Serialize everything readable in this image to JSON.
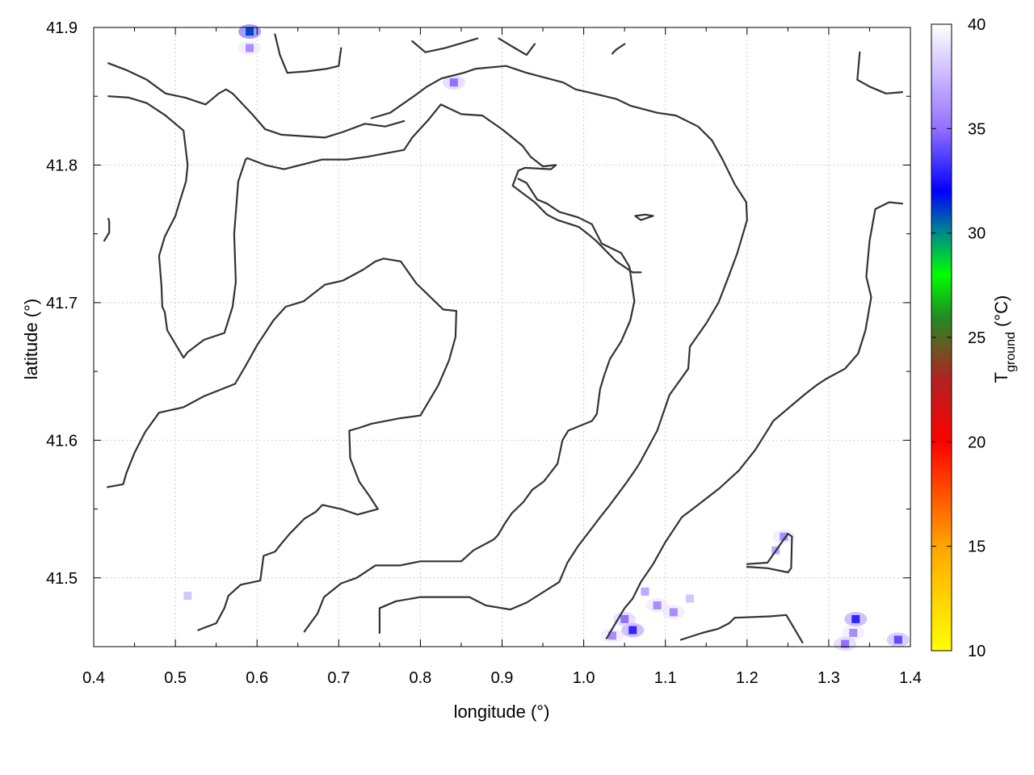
{
  "chart_data": {
    "type": "heatmap",
    "xlabel": "longitude (°)",
    "ylabel": "latitude (°)",
    "xlim": [
      0.4,
      1.4
    ],
    "ylim": [
      41.45,
      41.9
    ],
    "x_ticks": [
      "0.4",
      "0.5",
      "0.6",
      "0.7",
      "0.8",
      "0.9",
      "1.0",
      "1.1",
      "1.2",
      "1.3",
      "1.4"
    ],
    "y_ticks": [
      "41.5",
      "41.6",
      "41.7",
      "41.8",
      "41.9"
    ],
    "y_tick_values": [
      41.5,
      41.6,
      41.7,
      41.8,
      41.9
    ],
    "x_tick_values": [
      0.4,
      0.5,
      0.6,
      0.7,
      0.8,
      0.9,
      1.0,
      1.1,
      1.2,
      1.3,
      1.4
    ],
    "grid": true,
    "colorbar": {
      "label_main": "T",
      "label_sub": "ground",
      "label_unit": " (°C)",
      "range": [
        10,
        40
      ],
      "ticks": [
        "10",
        "15",
        "20",
        "25",
        "30",
        "35",
        "40"
      ],
      "tick_values": [
        10,
        15,
        20,
        25,
        30,
        35,
        40
      ],
      "stops": [
        {
          "value": 10,
          "color": "#ffff00"
        },
        {
          "value": 15,
          "color": "#ffa500"
        },
        {
          "value": 20,
          "color": "#ff0000"
        },
        {
          "value": 23,
          "color": "#b22222"
        },
        {
          "value": 26,
          "color": "#228b22"
        },
        {
          "value": 28,
          "color": "#00ff00"
        },
        {
          "value": 30,
          "color": "#008b8b"
        },
        {
          "value": 32,
          "color": "#0000ff"
        },
        {
          "value": 35,
          "color": "#9370ff"
        },
        {
          "value": 40,
          "color": "#ffffff"
        }
      ]
    },
    "hot_spots": [
      {
        "lon": 0.591,
        "lat": 41.897,
        "t": 31
      },
      {
        "lon": 0.591,
        "lat": 41.885,
        "t": 36
      },
      {
        "lon": 0.841,
        "lat": 41.86,
        "t": 35
      },
      {
        "lon": 0.515,
        "lat": 41.487,
        "t": 38
      },
      {
        "lon": 1.06,
        "lat": 41.462,
        "t": 33
      },
      {
        "lon": 1.05,
        "lat": 41.47,
        "t": 35
      },
      {
        "lon": 1.09,
        "lat": 41.48,
        "t": 36
      },
      {
        "lon": 1.11,
        "lat": 41.475,
        "t": 36
      },
      {
        "lon": 1.075,
        "lat": 41.49,
        "t": 37
      },
      {
        "lon": 1.13,
        "lat": 41.485,
        "t": 38
      },
      {
        "lon": 1.035,
        "lat": 41.458,
        "t": 36
      },
      {
        "lon": 1.245,
        "lat": 41.53,
        "t": 36
      },
      {
        "lon": 1.235,
        "lat": 41.52,
        "t": 37
      },
      {
        "lon": 1.333,
        "lat": 41.47,
        "t": 33
      },
      {
        "lon": 1.33,
        "lat": 41.46,
        "t": 36
      },
      {
        "lon": 1.385,
        "lat": 41.455,
        "t": 34
      },
      {
        "lon": 1.32,
        "lat": 41.452,
        "t": 35
      }
    ],
    "contours": [
      [
        [
          0.418,
          41.874
        ],
        [
          0.44,
          41.869
        ],
        [
          0.465,
          41.862
        ],
        [
          0.488,
          41.852
        ],
        [
          0.512,
          41.849
        ],
        [
          0.537,
          41.844
        ],
        [
          0.553,
          41.852
        ],
        [
          0.562,
          41.855
        ],
        [
          0.57,
          41.852
        ],
        [
          0.594,
          41.837
        ],
        [
          0.61,
          41.826
        ],
        [
          0.63,
          41.822
        ],
        [
          0.683,
          41.82
        ],
        [
          0.705,
          41.824
        ],
        [
          0.732,
          41.83
        ],
        [
          0.757,
          41.828
        ],
        [
          0.78,
          41.832
        ]
      ],
      [
        [
          0.418,
          41.85
        ],
        [
          0.443,
          41.849
        ],
        [
          0.465,
          41.845
        ],
        [
          0.488,
          41.836
        ],
        [
          0.51,
          41.825
        ],
        [
          0.515,
          41.8
        ],
        [
          0.513,
          41.788
        ],
        [
          0.505,
          41.773
        ],
        [
          0.5,
          41.763
        ],
        [
          0.487,
          41.748
        ],
        [
          0.48,
          41.734
        ],
        [
          0.483,
          41.712
        ],
        [
          0.484,
          41.697
        ],
        [
          0.487,
          41.693
        ],
        [
          0.49,
          41.68
        ],
        [
          0.51,
          41.66
        ],
        [
          0.515,
          41.664
        ],
        [
          0.535,
          41.673
        ],
        [
          0.56,
          41.678
        ],
        [
          0.57,
          41.697
        ],
        [
          0.574,
          41.715
        ],
        [
          0.572,
          41.75
        ],
        [
          0.577,
          41.788
        ],
        [
          0.586,
          41.804
        ],
        [
          0.588,
          41.805
        ],
        [
          0.61,
          41.8
        ],
        [
          0.633,
          41.797
        ],
        [
          0.68,
          41.804
        ],
        [
          0.71,
          41.804
        ],
        [
          0.735,
          41.806
        ],
        [
          0.78,
          41.811
        ],
        [
          0.79,
          41.82
        ],
        [
          0.81,
          41.833
        ],
        [
          0.825,
          41.844
        ],
        [
          0.85,
          41.837
        ],
        [
          0.876,
          41.836
        ],
        [
          0.9,
          41.826
        ],
        [
          0.925,
          41.814
        ],
        [
          0.935,
          41.806
        ],
        [
          0.95,
          41.799
        ],
        [
          0.966,
          41.8
        ],
        [
          0.96,
          41.797
        ],
        [
          0.928,
          41.798
        ],
        [
          0.92,
          41.796
        ],
        [
          0.913,
          41.785
        ],
        [
          0.94,
          41.773
        ],
        [
          0.955,
          41.764
        ],
        [
          0.968,
          41.76
        ],
        [
          0.994,
          41.755
        ],
        [
          1.005,
          41.75
        ],
        [
          1.015,
          41.745
        ],
        [
          1.04,
          41.73
        ],
        [
          1.06,
          41.722
        ],
        [
          1.07,
          41.722
        ]
      ],
      [
        [
          0.417,
          41.566
        ],
        [
          0.436,
          41.568
        ],
        [
          0.44,
          41.576
        ],
        [
          0.45,
          41.591
        ],
        [
          0.463,
          41.606
        ],
        [
          0.48,
          41.62
        ],
        [
          0.51,
          41.624
        ],
        [
          0.535,
          41.632
        ],
        [
          0.573,
          41.641
        ],
        [
          0.585,
          41.653
        ],
        [
          0.6,
          41.669
        ],
        [
          0.62,
          41.687
        ],
        [
          0.635,
          41.697
        ],
        [
          0.657,
          41.701
        ],
        [
          0.683,
          41.713
        ],
        [
          0.705,
          41.716
        ],
        [
          0.73,
          41.724
        ],
        [
          0.745,
          41.73
        ],
        [
          0.755,
          41.732
        ],
        [
          0.776,
          41.73
        ],
        [
          0.795,
          41.714
        ],
        [
          0.828,
          41.695
        ],
        [
          0.844,
          41.694
        ],
        [
          0.843,
          41.675
        ],
        [
          0.835,
          41.658
        ],
        [
          0.822,
          41.64
        ],
        [
          0.8,
          41.618
        ],
        [
          0.775,
          41.616
        ],
        [
          0.74,
          41.612
        ],
        [
          0.725,
          41.609
        ],
        [
          0.713,
          41.607
        ],
        [
          0.714,
          41.587
        ],
        [
          0.725,
          41.57
        ],
        [
          0.737,
          41.56
        ],
        [
          0.748,
          41.55
        ],
        [
          0.723,
          41.546
        ],
        [
          0.703,
          41.55
        ],
        [
          0.68,
          41.553
        ],
        [
          0.672,
          41.548
        ],
        [
          0.658,
          41.543
        ],
        [
          0.64,
          41.532
        ],
        [
          0.63,
          41.525
        ],
        [
          0.622,
          41.519
        ],
        [
          0.608,
          41.516
        ],
        [
          0.604,
          41.498
        ],
        [
          0.58,
          41.495
        ],
        [
          0.565,
          41.487
        ],
        [
          0.56,
          41.478
        ],
        [
          0.55,
          41.467
        ],
        [
          0.528,
          41.462
        ]
      ],
      [
        [
          0.658,
          41.461
        ],
        [
          0.674,
          41.474
        ],
        [
          0.682,
          41.486
        ],
        [
          0.703,
          41.496
        ],
        [
          0.722,
          41.5
        ],
        [
          0.745,
          41.509
        ],
        [
          0.775,
          41.509
        ],
        [
          0.8,
          41.512
        ],
        [
          0.85,
          41.512
        ],
        [
          0.865,
          41.52
        ],
        [
          0.89,
          41.528
        ],
        [
          0.895,
          41.531
        ],
        [
          0.904,
          41.54
        ],
        [
          0.912,
          41.547
        ],
        [
          0.926,
          41.555
        ],
        [
          0.937,
          41.564
        ],
        [
          0.951,
          41.57
        ],
        [
          0.968,
          41.583
        ],
        [
          0.974,
          41.6
        ],
        [
          0.981,
          41.607
        ],
        [
          1.01,
          41.614
        ],
        [
          1.016,
          41.619
        ],
        [
          1.02,
          41.637
        ],
        [
          1.025,
          41.647
        ],
        [
          1.032,
          41.659
        ],
        [
          1.046,
          41.672
        ],
        [
          1.057,
          41.687
        ],
        [
          1.062,
          41.701
        ],
        [
          1.056,
          41.726
        ],
        [
          1.046,
          41.736
        ],
        [
          1.022,
          41.743
        ],
        [
          1.01,
          41.757
        ],
        [
          0.993,
          41.762
        ],
        [
          0.97,
          41.766
        ],
        [
          0.955,
          41.772
        ],
        [
          0.943,
          41.775
        ],
        [
          0.93,
          41.787
        ],
        [
          0.92,
          41.79
        ]
      ],
      [
        [
          0.75,
          41.46
        ],
        [
          0.75,
          41.478
        ],
        [
          0.77,
          41.483
        ],
        [
          0.8,
          41.486
        ],
        [
          0.86,
          41.486
        ],
        [
          0.88,
          41.48
        ],
        [
          0.91,
          41.477
        ],
        [
          0.93,
          41.482
        ],
        [
          0.97,
          41.497
        ],
        [
          0.98,
          41.511
        ],
        [
          0.993,
          41.523
        ],
        [
          1.006,
          41.533
        ],
        [
          1.02,
          41.544
        ],
        [
          1.032,
          41.553
        ],
        [
          1.052,
          41.569
        ],
        [
          1.065,
          41.58
        ],
        [
          1.07,
          41.585
        ],
        [
          1.09,
          41.607
        ],
        [
          1.105,
          41.633
        ],
        [
          1.128,
          41.652
        ],
        [
          1.13,
          41.668
        ],
        [
          1.15,
          41.685
        ],
        [
          1.165,
          41.7
        ],
        [
          1.178,
          41.72
        ],
        [
          1.188,
          41.736
        ],
        [
          1.2,
          41.76
        ],
        [
          1.199,
          41.773
        ],
        [
          1.185,
          41.786
        ],
        [
          1.17,
          41.804
        ],
        [
          1.157,
          41.818
        ],
        [
          1.14,
          41.828
        ],
        [
          1.113,
          41.836
        ],
        [
          1.09,
          41.838
        ],
        [
          1.058,
          41.843
        ],
        [
          1.04,
          41.848
        ],
        [
          1.012,
          41.852
        ],
        [
          0.99,
          41.855
        ],
        [
          0.975,
          41.86
        ],
        [
          0.93,
          41.867
        ],
        [
          0.905,
          41.872
        ],
        [
          0.868,
          41.87
        ],
        [
          0.853,
          41.867
        ],
        [
          0.826,
          41.863
        ],
        [
          0.808,
          41.857
        ],
        [
          0.792,
          41.85
        ],
        [
          0.775,
          41.843
        ],
        [
          0.763,
          41.838
        ],
        [
          0.74,
          41.834
        ]
      ],
      [
        [
          1.119,
          41.455
        ],
        [
          1.145,
          41.46
        ],
        [
          1.165,
          41.463
        ],
        [
          1.178,
          41.467
        ],
        [
          1.185,
          41.471
        ],
        [
          1.228,
          41.472
        ],
        [
          1.248,
          41.473
        ],
        [
          1.258,
          41.463
        ],
        [
          1.268,
          41.453
        ]
      ],
      [
        [
          1.028,
          41.456
        ],
        [
          1.04,
          41.468
        ],
        [
          1.05,
          41.478
        ],
        [
          1.06,
          41.485
        ],
        [
          1.07,
          41.497
        ],
        [
          1.085,
          41.51
        ],
        [
          1.1,
          41.526
        ],
        [
          1.12,
          41.544
        ],
        [
          1.14,
          41.553
        ],
        [
          1.166,
          41.565
        ],
        [
          1.19,
          41.578
        ],
        [
          1.21,
          41.593
        ],
        [
          1.228,
          41.61
        ],
        [
          1.232,
          41.614
        ],
        [
          1.256,
          41.626
        ],
        [
          1.272,
          41.634
        ],
        [
          1.285,
          41.64
        ],
        [
          1.298,
          41.645
        ],
        [
          1.32,
          41.652
        ],
        [
          1.336,
          41.663
        ],
        [
          1.345,
          41.68
        ],
        [
          1.352,
          41.704
        ],
        [
          1.346,
          41.719
        ],
        [
          1.35,
          41.745
        ],
        [
          1.357,
          41.768
        ],
        [
          1.374,
          41.773
        ],
        [
          1.39,
          41.772
        ]
      ],
      [
        [
          1.2,
          41.51
        ],
        [
          1.225,
          41.511
        ],
        [
          1.245,
          41.528
        ],
        [
          1.25,
          41.532
        ],
        [
          1.255,
          41.53
        ],
        [
          1.254,
          41.507
        ],
        [
          1.25,
          41.504
        ],
        [
          1.225,
          41.507
        ],
        [
          1.2,
          41.508
        ]
      ],
      [
        [
          1.063,
          41.763
        ],
        [
          1.075,
          41.764
        ],
        [
          1.085,
          41.763
        ],
        [
          1.07,
          41.76
        ],
        [
          1.063,
          41.763
        ]
      ],
      [
        [
          0.418,
          41.761
        ],
        [
          0.419,
          41.759
        ],
        [
          0.419,
          41.751
        ],
        [
          0.413,
          41.745
        ]
      ],
      [
        [
          0.622,
          41.895
        ],
        [
          0.628,
          41.88
        ],
        [
          0.637,
          41.867
        ],
        [
          0.66,
          41.868
        ],
        [
          0.686,
          41.87
        ],
        [
          0.7,
          41.872
        ],
        [
          0.703,
          41.885
        ]
      ],
      [
        [
          0.79,
          41.89
        ],
        [
          0.806,
          41.882
        ],
        [
          0.83,
          41.885
        ],
        [
          0.853,
          41.889
        ],
        [
          0.87,
          41.892
        ]
      ],
      [
        [
          0.896,
          41.892
        ],
        [
          0.91,
          41.887
        ],
        [
          0.93,
          41.88
        ],
        [
          0.94,
          41.888
        ]
      ],
      [
        [
          1.035,
          41.881
        ],
        [
          1.04,
          41.884
        ],
        [
          1.05,
          41.888
        ]
      ],
      [
        [
          1.338,
          41.882
        ],
        [
          1.335,
          41.862
        ],
        [
          1.35,
          41.857
        ],
        [
          1.37,
          41.852
        ],
        [
          1.39,
          41.853
        ]
      ]
    ]
  }
}
